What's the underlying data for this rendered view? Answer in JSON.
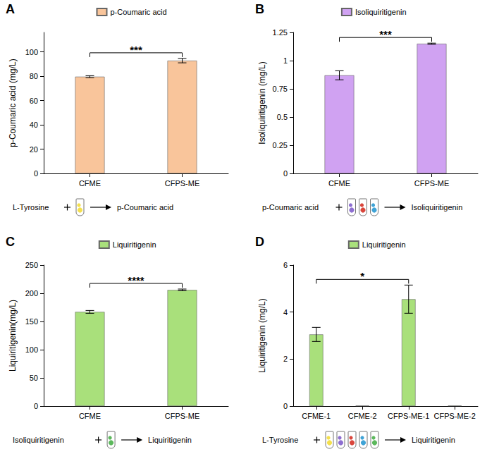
{
  "chart_data": [
    {
      "type": "bar",
      "panel": "A",
      "categories": [
        "CFME",
        "CFPS-ME"
      ],
      "series": [
        {
          "name": "p-Coumaric acid",
          "color": "#f9c59b",
          "values": [
            79.6,
            92.8
          ],
          "errors": [
            0.8,
            1.8
          ]
        }
      ],
      "y_label": "p-Coumaric acid (mg/L)",
      "ylim": [
        0,
        116
      ],
      "yticks": [
        0,
        20,
        40,
        60,
        80,
        100
      ],
      "grid": false,
      "legend": "top",
      "annotations": [
        {
          "text": "***",
          "from": "CFME",
          "to": "CFPS-ME"
        }
      ],
      "reaction": {
        "substrate": "L-Tyrosine",
        "product": "p-Coumaric acid"
      }
    },
    {
      "type": "bar",
      "panel": "B",
      "categories": [
        "CFME",
        "CFPS-ME"
      ],
      "series": [
        {
          "name": "Isoliquiritigenin",
          "color": "#d0a2f2",
          "values": [
            0.87,
            1.15
          ],
          "errors": [
            0.04,
            0.005
          ]
        }
      ],
      "y_label": "Isoliquiritigenin (mg/L)",
      "ylim": [
        0,
        1.25
      ],
      "yticks": [
        0,
        0.25,
        0.5,
        0.75,
        1,
        1.25
      ],
      "grid": false,
      "legend": "top",
      "annotations": [
        {
          "text": "***",
          "from": "CFME",
          "to": "CFPS-ME"
        }
      ],
      "reaction": {
        "substrate": "p-Coumaric acid",
        "product": "Isoliquiritigenin"
      }
    },
    {
      "type": "bar",
      "panel": "C",
      "categories": [
        "CFME",
        "CFPS-ME"
      ],
      "series": [
        {
          "name": "Liquiritigenin",
          "color": "#a9e07b",
          "values": [
            167,
            206
          ],
          "errors": [
            2.5,
            1.5
          ]
        }
      ],
      "y_label": "Liquiritigenin(mg/L)",
      "ylim": [
        0,
        250
      ],
      "yticks": [
        0,
        50,
        100,
        150,
        200,
        250
      ],
      "grid": false,
      "legend": "top",
      "annotations": [
        {
          "text": "****",
          "from": "CFME",
          "to": "CFPS-ME"
        }
      ],
      "reaction": {
        "substrate": "Isoliquiritigenin",
        "product": "Liquiritigenin"
      }
    },
    {
      "type": "bar",
      "panel": "D",
      "categories": [
        "CFME-1",
        "CFME-2",
        "CFPS-ME-1",
        "CFPS-ME-2"
      ],
      "series": [
        {
          "name": "Liquiritigenin",
          "color": "#a9e07b",
          "values": [
            3.05,
            0.02,
            4.55,
            0.02
          ],
          "errors": [
            0.3,
            0,
            0.6,
            0
          ]
        }
      ],
      "y_label": "Liquiritigenin (mg/L)",
      "ylim": [
        0,
        6
      ],
      "yticks": [
        0,
        2,
        4,
        6
      ],
      "grid": false,
      "legend": "top",
      "annotations": [
        {
          "text": "*",
          "from": "CFME-1",
          "to": "CFPS-ME-1"
        }
      ],
      "reaction": {
        "substrate": "L-Tyrosine",
        "product": "Liquiritigenin"
      }
    }
  ]
}
